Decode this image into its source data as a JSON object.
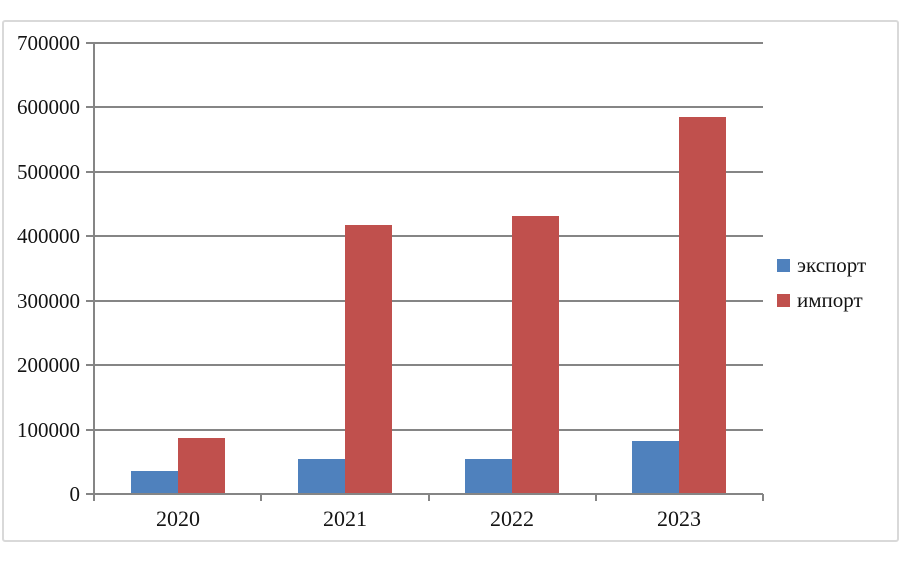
{
  "chart_data": {
    "type": "bar",
    "categories": [
      "2020",
      "2021",
      "2022",
      "2023"
    ],
    "series": [
      {
        "name": "экспорт",
        "color": "#4F81BD",
        "values": [
          35000,
          55000,
          55000,
          83000
        ]
      },
      {
        "name": "импорт",
        "color": "#C0504D",
        "values": [
          87000,
          418000,
          432000,
          585000
        ]
      }
    ],
    "title": "",
    "xlabel": "",
    "ylabel": "",
    "ylim": [
      0,
      700000
    ],
    "yticks": [
      0,
      100000,
      200000,
      300000,
      400000,
      500000,
      600000,
      700000
    ],
    "grid": true,
    "legend_position": "right"
  },
  "colors": {
    "grid": "#858585",
    "frame_border": "#d9d9d9",
    "text": "#141414",
    "background": "#ffffff"
  }
}
